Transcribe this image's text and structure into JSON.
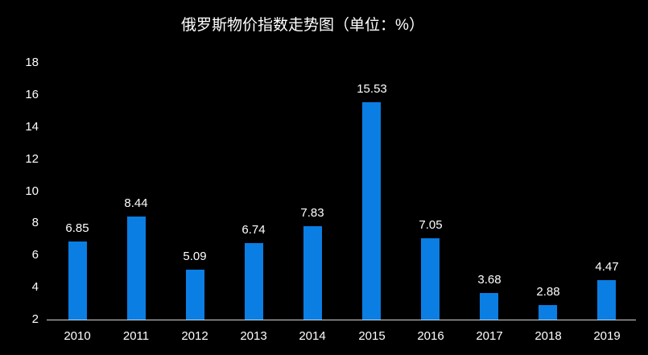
{
  "page": {
    "background_color": "#000000",
    "text_color": "#ffffff"
  },
  "chart_data": {
    "type": "bar",
    "title": "俄罗斯物价指数走势图（单位：%）",
    "categories": [
      "2010",
      "2011",
      "2012",
      "2013",
      "2014",
      "2015",
      "2016",
      "2017",
      "2018",
      "2019"
    ],
    "values": [
      6.85,
      8.44,
      5.09,
      6.74,
      7.83,
      15.53,
      7.05,
      3.68,
      2.88,
      4.47
    ],
    "value_labels": [
      "6.85",
      "8.44",
      "5.09",
      "6.74",
      "7.83",
      "15.53",
      "7.05",
      "3.68",
      "2.88",
      "4.47"
    ],
    "xlabel": "",
    "ylabel": "",
    "ylim": [
      2,
      18
    ],
    "yticks": [
      2,
      4,
      6,
      8,
      10,
      12,
      14,
      16,
      18
    ],
    "grid": false,
    "legend": false,
    "bar_color": "#0a7ee3",
    "axis_line_color": "#d6d6d6",
    "label_color": "#ffffff"
  }
}
